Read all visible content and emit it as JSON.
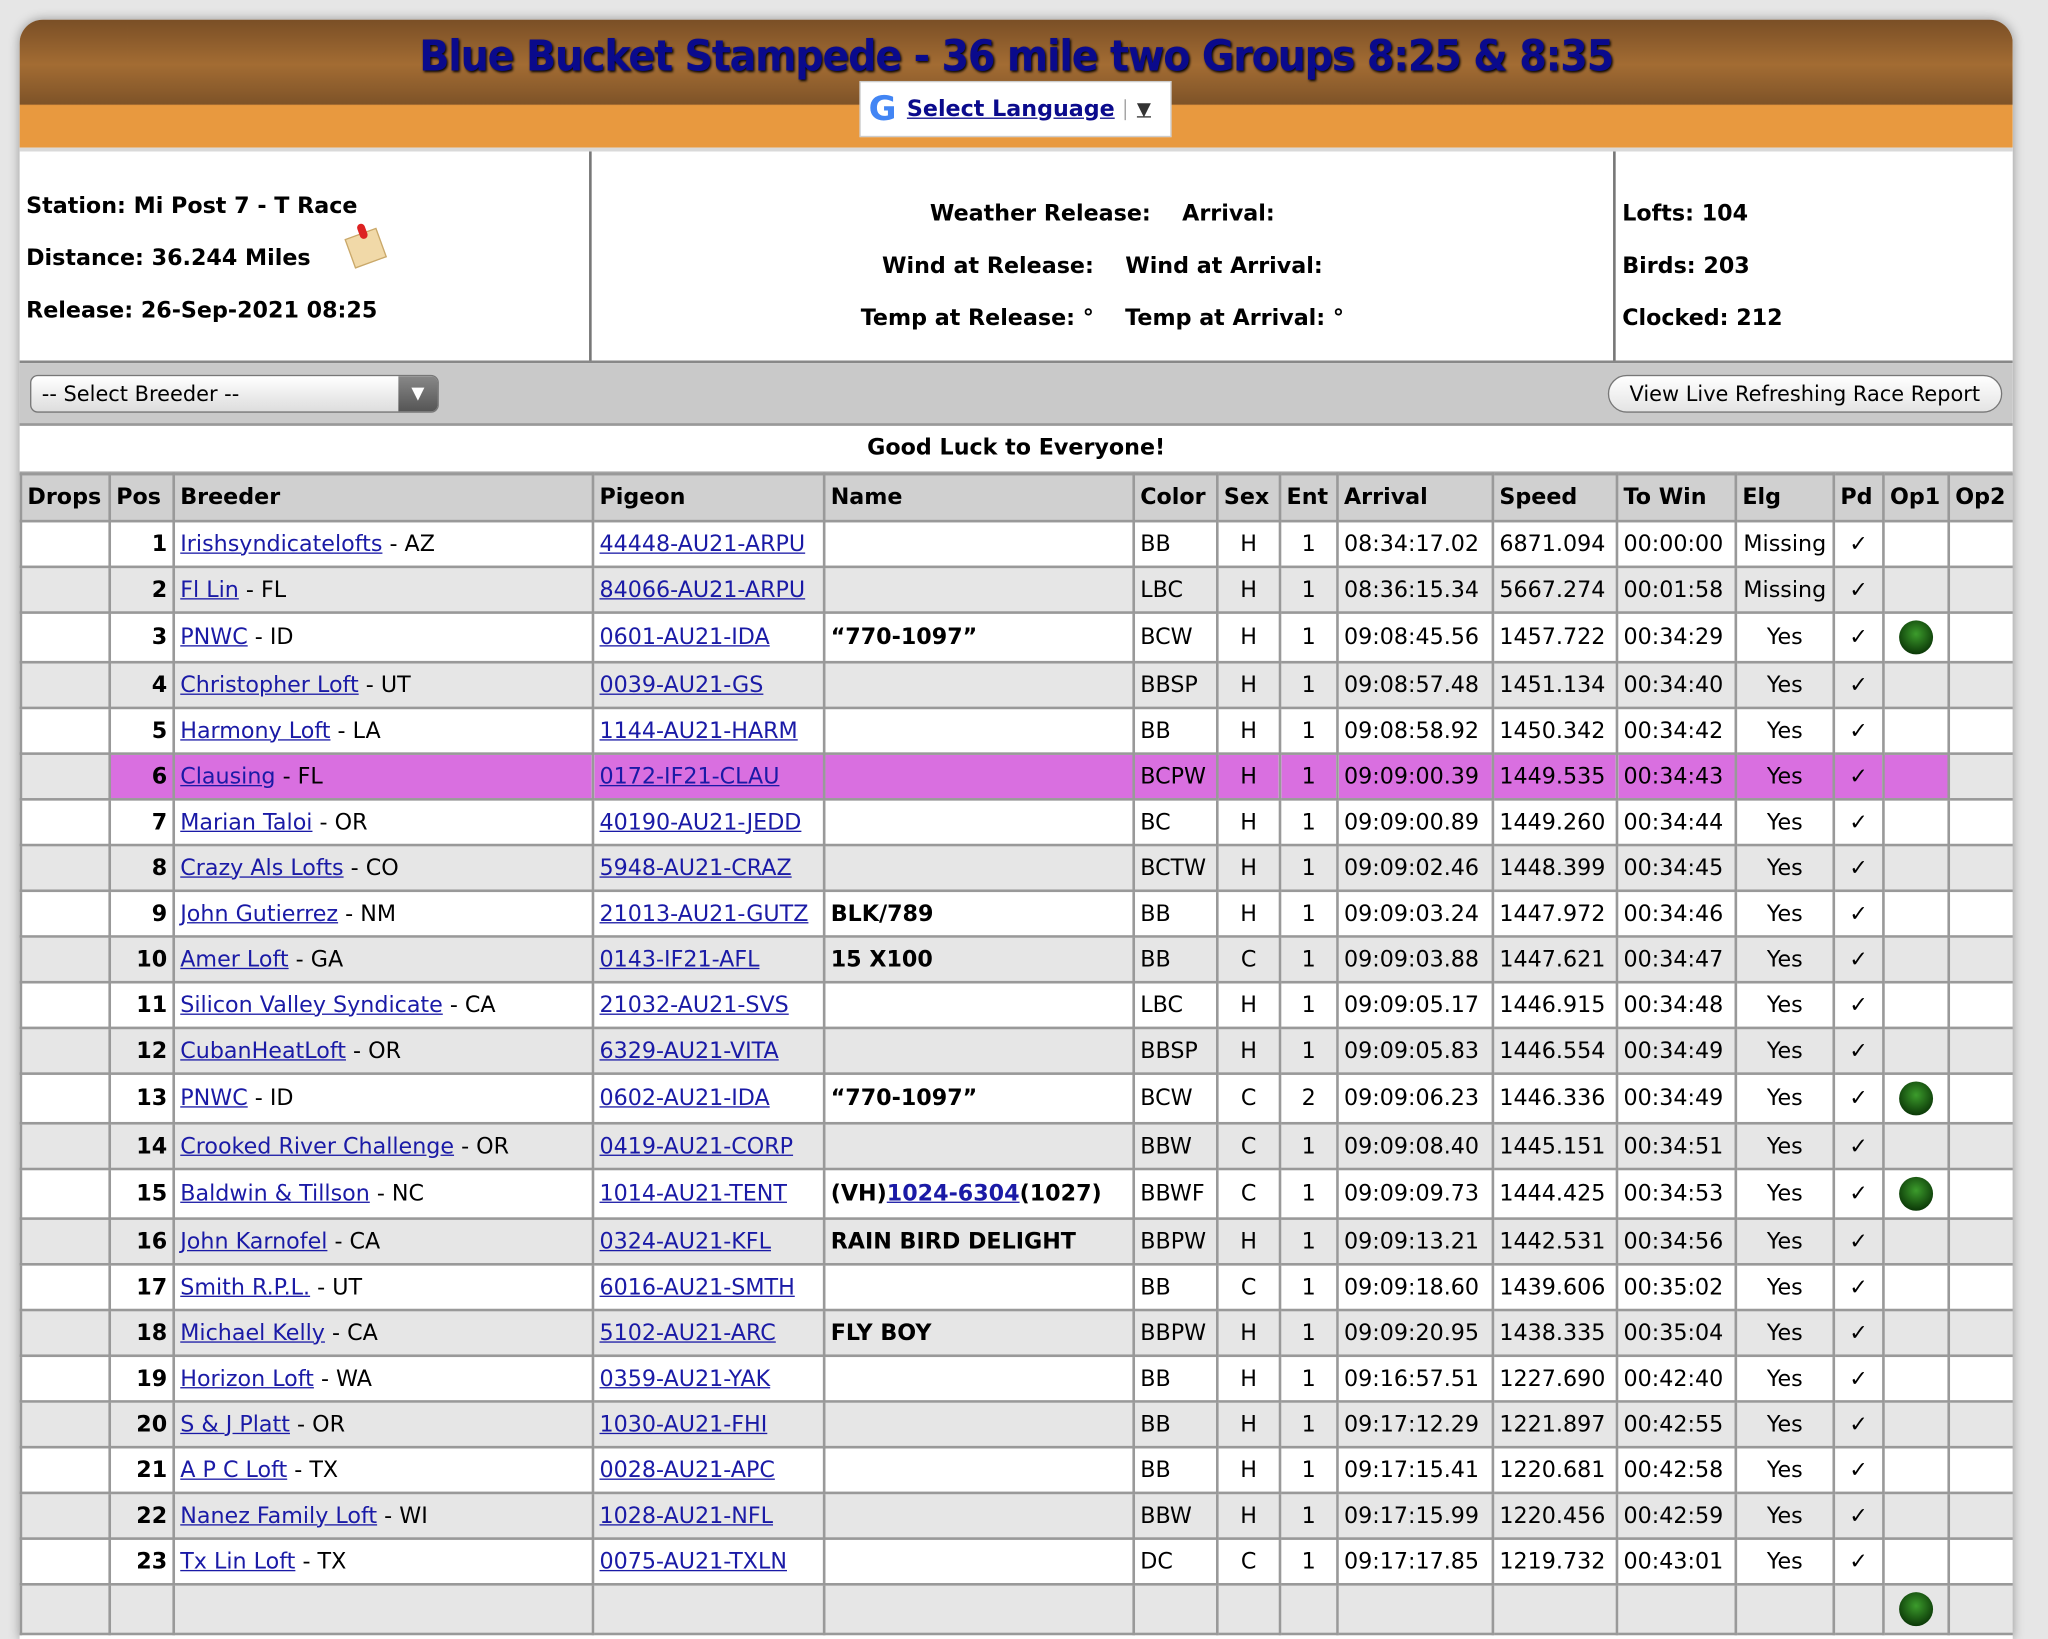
{
  "header": {
    "title": "Blue Bucket Stampede - 36 mile two Groups 8:25 & 8:35",
    "language_label": "Select Language",
    "language_arrow": "▼"
  },
  "info": {
    "station": "Station: Mi Post 7 - T Race",
    "distance": "Distance: 36.244 Miles",
    "release": "Release: 26-Sep-2021 08:25",
    "weather_release": "Weather Release:",
    "arrival": "Arrival:",
    "wind_release": "Wind at Release:",
    "wind_arrival": "Wind at Arrival:",
    "temp_release": "Temp at Release: °",
    "temp_arrival": "Temp at Arrival: °",
    "lofts": "Lofts: 104",
    "birds": "Birds: 203",
    "clocked": "Clocked: 212"
  },
  "controls": {
    "breeder_select": "-- Select Breeder --",
    "live_button": "View Live Refreshing Race Report"
  },
  "message": "Good Luck to Everyone!",
  "colors": {
    "header_orange": "#e8993f",
    "title": "#0a0a8c",
    "highlight": "#d96fe0"
  },
  "table": {
    "columns": [
      "Drops",
      "Pos",
      "Breeder",
      "Pigeon",
      "Name",
      "Color",
      "Sex",
      "Ent",
      "Arrival",
      "Speed",
      "To Win",
      "Elg",
      "Pd",
      "Op1",
      "Op2"
    ],
    "rows": [
      {
        "pos": "1",
        "breeder": "Irishsyndicatelofts",
        "state": " - AZ",
        "pigeon": "44448-AU21-ARPU",
        "name": "",
        "color": "BB",
        "sex": "H",
        "ent": "1",
        "arrival": "08:34:17.02",
        "speed": "6871.094",
        "towin": "00:00:00",
        "elg": "Missing",
        "pd": "✓",
        "op1": false
      },
      {
        "pos": "2",
        "breeder": "Fl Lin",
        "state": " - FL",
        "pigeon": "84066-AU21-ARPU",
        "name": "",
        "color": "LBC",
        "sex": "H",
        "ent": "1",
        "arrival": "08:36:15.34",
        "speed": "5667.274",
        "towin": "00:01:58",
        "elg": "Missing",
        "pd": "✓",
        "op1": false
      },
      {
        "pos": "3",
        "breeder": "PNWC",
        "state": " - ID",
        "pigeon": "0601-AU21-IDA",
        "name": "“770-1097”",
        "color": "BCW",
        "sex": "H",
        "ent": "1",
        "arrival": "09:08:45.56",
        "speed": "1457.722",
        "towin": "00:34:29",
        "elg": "Yes",
        "pd": "✓",
        "op1": true
      },
      {
        "pos": "4",
        "breeder": "Christopher Loft",
        "state": " - UT",
        "pigeon": "0039-AU21-GS",
        "name": "",
        "color": "BBSP",
        "sex": "H",
        "ent": "1",
        "arrival": "09:08:57.48",
        "speed": "1451.134",
        "towin": "00:34:40",
        "elg": "Yes",
        "pd": "✓",
        "op1": false
      },
      {
        "pos": "5",
        "breeder": "Harmony Loft",
        "state": " - LA",
        "pigeon": "1144-AU21-HARM",
        "name": "",
        "color": "BB",
        "sex": "H",
        "ent": "1",
        "arrival": "09:08:58.92",
        "speed": "1450.342",
        "towin": "00:34:42",
        "elg": "Yes",
        "pd": "✓",
        "op1": false
      },
      {
        "pos": "6",
        "breeder": "Clausing",
        "state": " - FL",
        "pigeon": "0172-IF21-CLAU",
        "name": "",
        "color": "BCPW",
        "sex": "H",
        "ent": "1",
        "arrival": "09:09:00.39",
        "speed": "1449.535",
        "towin": "00:34:43",
        "elg": "Yes",
        "pd": "✓",
        "op1": false,
        "highlight": true
      },
      {
        "pos": "7",
        "breeder": "Marian Taloi",
        "state": " - OR",
        "pigeon": "40190-AU21-JEDD",
        "name": "",
        "color": "BC",
        "sex": "H",
        "ent": "1",
        "arrival": "09:09:00.89",
        "speed": "1449.260",
        "towin": "00:34:44",
        "elg": "Yes",
        "pd": "✓",
        "op1": false
      },
      {
        "pos": "8",
        "breeder": "Crazy Als Lofts",
        "state": " - CO",
        "pigeon": "5948-AU21-CRAZ",
        "name": "",
        "color": "BCTW",
        "sex": "H",
        "ent": "1",
        "arrival": "09:09:02.46",
        "speed": "1448.399",
        "towin": "00:34:45",
        "elg": "Yes",
        "pd": "✓",
        "op1": false
      },
      {
        "pos": "9",
        "breeder": "John Gutierrez",
        "state": " - NM",
        "pigeon": "21013-AU21-GUTZ",
        "name": "BLK/789",
        "color": "BB",
        "sex": "H",
        "ent": "1",
        "arrival": "09:09:03.24",
        "speed": "1447.972",
        "towin": "00:34:46",
        "elg": "Yes",
        "pd": "✓",
        "op1": false
      },
      {
        "pos": "10",
        "breeder": "Amer Loft",
        "state": " - GA",
        "pigeon": "0143-IF21-AFL",
        "name": "15 X100",
        "color": "BB",
        "sex": "C",
        "ent": "1",
        "arrival": "09:09:03.88",
        "speed": "1447.621",
        "towin": "00:34:47",
        "elg": "Yes",
        "pd": "✓",
        "op1": false
      },
      {
        "pos": "11",
        "breeder": "Silicon Valley Syndicate",
        "state": " - CA",
        "pigeon": "21032-AU21-SVS",
        "name": "",
        "color": "LBC",
        "sex": "H",
        "ent": "1",
        "arrival": "09:09:05.17",
        "speed": "1446.915",
        "towin": "00:34:48",
        "elg": "Yes",
        "pd": "✓",
        "op1": false
      },
      {
        "pos": "12",
        "breeder": "CubanHeatLoft",
        "state": " - OR",
        "pigeon": "6329-AU21-VITA",
        "name": "",
        "color": "BBSP",
        "sex": "H",
        "ent": "1",
        "arrival": "09:09:05.83",
        "speed": "1446.554",
        "towin": "00:34:49",
        "elg": "Yes",
        "pd": "✓",
        "op1": false
      },
      {
        "pos": "13",
        "breeder": "PNWC",
        "state": " - ID",
        "pigeon": "0602-AU21-IDA",
        "name": "“770-1097”",
        "color": "BCW",
        "sex": "C",
        "ent": "2",
        "arrival": "09:09:06.23",
        "speed": "1446.336",
        "towin": "00:34:49",
        "elg": "Yes",
        "pd": "✓",
        "op1": true
      },
      {
        "pos": "14",
        "breeder": "Crooked River Challenge",
        "state": " - OR",
        "pigeon": "0419-AU21-CORP",
        "name": "",
        "color": "BBW",
        "sex": "C",
        "ent": "1",
        "arrival": "09:09:08.40",
        "speed": "1445.151",
        "towin": "00:34:51",
        "elg": "Yes",
        "pd": "✓",
        "op1": false
      },
      {
        "pos": "15",
        "breeder": "Baldwin & Tillson",
        "state": " - NC",
        "pigeon": "1014-AU21-TENT",
        "name_pre": "(VH)",
        "name_link": "1024-6304",
        "name_post": "(1027)",
        "color": "BBWF",
        "sex": "C",
        "ent": "1",
        "arrival": "09:09:09.73",
        "speed": "1444.425",
        "towin": "00:34:53",
        "elg": "Yes",
        "pd": "✓",
        "op1": true
      },
      {
        "pos": "16",
        "breeder": "John Karnofel",
        "state": " - CA",
        "pigeon": "0324-AU21-KFL",
        "name": "RAIN BIRD DELIGHT",
        "color": "BBPW",
        "sex": "H",
        "ent": "1",
        "arrival": "09:09:13.21",
        "speed": "1442.531",
        "towin": "00:34:56",
        "elg": "Yes",
        "pd": "✓",
        "op1": false
      },
      {
        "pos": "17",
        "breeder": "Smith R.P.L.",
        "state": " - UT",
        "pigeon": "6016-AU21-SMTH",
        "name": "",
        "color": "BB",
        "sex": "C",
        "ent": "1",
        "arrival": "09:09:18.60",
        "speed": "1439.606",
        "towin": "00:35:02",
        "elg": "Yes",
        "pd": "✓",
        "op1": false
      },
      {
        "pos": "18",
        "breeder": "Michael Kelly",
        "state": " - CA",
        "pigeon": "5102-AU21-ARC",
        "name": "FLY BOY",
        "color": "BBPW",
        "sex": "H",
        "ent": "1",
        "arrival": "09:09:20.95",
        "speed": "1438.335",
        "towin": "00:35:04",
        "elg": "Yes",
        "pd": "✓",
        "op1": false
      },
      {
        "pos": "19",
        "breeder": "Horizon Loft",
        "state": " - WA",
        "pigeon": "0359-AU21-YAK",
        "name": "",
        "color": "BB",
        "sex": "H",
        "ent": "1",
        "arrival": "09:16:57.51",
        "speed": "1227.690",
        "towin": "00:42:40",
        "elg": "Yes",
        "pd": "✓",
        "op1": false
      },
      {
        "pos": "20",
        "breeder": "S & J Platt",
        "state": " - OR",
        "pigeon": "1030-AU21-FHI",
        "name": "",
        "color": "BB",
        "sex": "H",
        "ent": "1",
        "arrival": "09:17:12.29",
        "speed": "1221.897",
        "towin": "00:42:55",
        "elg": "Yes",
        "pd": "✓",
        "op1": false
      },
      {
        "pos": "21",
        "breeder": "A P C Loft",
        "state": " - TX",
        "pigeon": "0028-AU21-APC",
        "name": "",
        "color": "BB",
        "sex": "H",
        "ent": "1",
        "arrival": "09:17:15.41",
        "speed": "1220.681",
        "towin": "00:42:58",
        "elg": "Yes",
        "pd": "✓",
        "op1": false
      },
      {
        "pos": "22",
        "breeder": "Nanez Family Loft",
        "state": " - WI",
        "pigeon": "1028-AU21-NFL",
        "name": "",
        "color": "BBW",
        "sex": "H",
        "ent": "1",
        "arrival": "09:17:15.99",
        "speed": "1220.456",
        "towin": "00:42:59",
        "elg": "Yes",
        "pd": "✓",
        "op1": false
      },
      {
        "pos": "23",
        "breeder": "Tx Lin Loft",
        "state": " - TX",
        "pigeon": "0075-AU21-TXLN",
        "name": "",
        "color": "DC",
        "sex": "C",
        "ent": "1",
        "arrival": "09:17:17.85",
        "speed": "1219.732",
        "towin": "00:43:01",
        "elg": "Yes",
        "pd": "✓",
        "op1": false
      }
    ]
  }
}
